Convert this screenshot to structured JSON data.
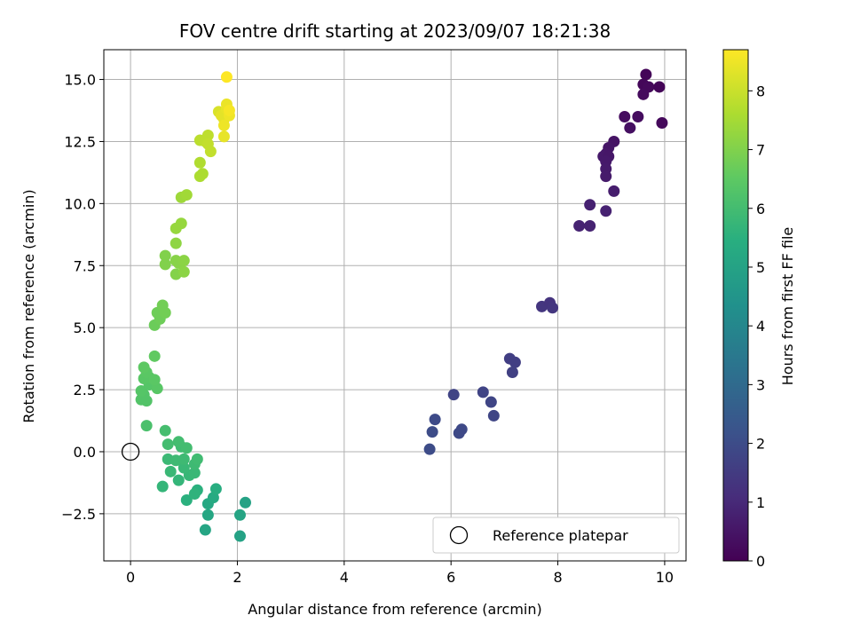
{
  "chart_data": {
    "type": "scatter",
    "title": "FOV centre drift starting at 2023/09/07 18:21:38",
    "xlabel": "Angular distance from reference (arcmin)",
    "ylabel": "Rotation from reference (arcmin)",
    "xlim": [
      -0.5,
      10.4
    ],
    "ylim": [
      -4.4,
      16.2
    ],
    "xticks": [
      0,
      2,
      4,
      6,
      8,
      10
    ],
    "xtick_labels": [
      "0",
      "2",
      "4",
      "6",
      "8",
      "10"
    ],
    "yticks": [
      -2.5,
      0.0,
      2.5,
      5.0,
      7.5,
      10.0,
      12.5,
      15.0
    ],
    "ytick_labels": [
      "−2.5",
      "0.0",
      "2.5",
      "5.0",
      "7.5",
      "10.0",
      "12.5",
      "15.0"
    ],
    "grid": true,
    "colormap": "viridis",
    "colorbar": {
      "label": "Hours from first FF file",
      "range": [
        0,
        8.7
      ],
      "ticks": [
        0,
        1,
        2,
        3,
        4,
        5,
        6,
        7,
        8
      ],
      "tick_labels": [
        "0",
        "1",
        "2",
        "3",
        "4",
        "5",
        "6",
        "7",
        "8"
      ]
    },
    "legend": {
      "entries": [
        "Reference platepar"
      ],
      "placement": "lower-right"
    },
    "reference_point": {
      "x": 0,
      "y": 0
    },
    "series": [
      {
        "points": [
          {
            "x": 9.65,
            "y": 15.2,
            "c": 0.1
          },
          {
            "x": 9.6,
            "y": 14.8,
            "c": 0.15
          },
          {
            "x": 9.7,
            "y": 14.7,
            "c": 0.2
          },
          {
            "x": 9.9,
            "y": 14.7,
            "c": 0.1
          },
          {
            "x": 9.6,
            "y": 14.4,
            "c": 0.25
          },
          {
            "x": 9.25,
            "y": 13.5,
            "c": 0.3
          },
          {
            "x": 9.5,
            "y": 13.5,
            "c": 0.3
          },
          {
            "x": 9.35,
            "y": 13.05,
            "c": 0.35
          },
          {
            "x": 9.95,
            "y": 13.25,
            "c": 0.2
          },
          {
            "x": 9.05,
            "y": 12.5,
            "c": 0.45
          },
          {
            "x": 8.95,
            "y": 12.25,
            "c": 0.5
          },
          {
            "x": 8.9,
            "y": 12.0,
            "c": 0.55
          },
          {
            "x": 8.85,
            "y": 11.9,
            "c": 0.6
          },
          {
            "x": 8.95,
            "y": 11.9,
            "c": 0.55
          },
          {
            "x": 8.9,
            "y": 11.7,
            "c": 0.6
          },
          {
            "x": 8.9,
            "y": 11.4,
            "c": 0.65
          },
          {
            "x": 8.9,
            "y": 11.1,
            "c": 0.65
          },
          {
            "x": 9.05,
            "y": 10.5,
            "c": 0.7
          },
          {
            "x": 8.6,
            "y": 9.95,
            "c": 0.8
          },
          {
            "x": 8.9,
            "y": 9.7,
            "c": 0.8
          },
          {
            "x": 8.4,
            "y": 9.1,
            "c": 0.85
          },
          {
            "x": 8.6,
            "y": 9.1,
            "c": 0.85
          },
          {
            "x": 7.7,
            "y": 5.85,
            "c": 1.35
          },
          {
            "x": 7.85,
            "y": 6.0,
            "c": 1.3
          },
          {
            "x": 7.9,
            "y": 5.8,
            "c": 1.35
          },
          {
            "x": 7.1,
            "y": 3.75,
            "c": 1.6
          },
          {
            "x": 7.2,
            "y": 3.6,
            "c": 1.6
          },
          {
            "x": 7.15,
            "y": 3.2,
            "c": 1.65
          },
          {
            "x": 6.6,
            "y": 2.4,
            "c": 1.75
          },
          {
            "x": 6.75,
            "y": 2.0,
            "c": 1.8
          },
          {
            "x": 6.8,
            "y": 1.45,
            "c": 1.8
          },
          {
            "x": 6.05,
            "y": 2.3,
            "c": 1.75
          },
          {
            "x": 6.2,
            "y": 0.9,
            "c": 1.9
          },
          {
            "x": 6.15,
            "y": 0.75,
            "c": 1.9
          },
          {
            "x": 5.7,
            "y": 1.3,
            "c": 1.95
          },
          {
            "x": 5.65,
            "y": 0.8,
            "c": 2.0
          },
          {
            "x": 5.6,
            "y": 0.1,
            "c": 2.0
          },
          {
            "x": 2.15,
            "y": -2.05,
            "c": 5.0
          },
          {
            "x": 2.05,
            "y": -2.55,
            "c": 5.05
          },
          {
            "x": 2.05,
            "y": -3.4,
            "c": 5.0
          },
          {
            "x": 1.4,
            "y": -3.15,
            "c": 5.1
          },
          {
            "x": 1.45,
            "y": -2.55,
            "c": 5.15
          },
          {
            "x": 1.45,
            "y": -2.1,
            "c": 5.2
          },
          {
            "x": 1.55,
            "y": -1.85,
            "c": 5.3
          },
          {
            "x": 1.6,
            "y": -1.5,
            "c": 5.4
          },
          {
            "x": 1.25,
            "y": -1.55,
            "c": 5.5
          },
          {
            "x": 1.05,
            "y": -1.95,
            "c": 5.5
          },
          {
            "x": 1.2,
            "y": -1.7,
            "c": 5.6
          },
          {
            "x": 0.9,
            "y": -1.15,
            "c": 5.7
          },
          {
            "x": 1.1,
            "y": -0.95,
            "c": 5.75
          },
          {
            "x": 1.2,
            "y": -0.85,
            "c": 5.8
          },
          {
            "x": 1.0,
            "y": -0.65,
            "c": 5.8
          },
          {
            "x": 0.75,
            "y": -0.8,
            "c": 5.8
          },
          {
            "x": 0.6,
            "y": -1.4,
            "c": 5.7
          },
          {
            "x": 0.7,
            "y": -0.3,
            "c": 5.85
          },
          {
            "x": 0.85,
            "y": -0.35,
            "c": 5.9
          },
          {
            "x": 1.0,
            "y": -0.3,
            "c": 5.9
          },
          {
            "x": 1.2,
            "y": -0.5,
            "c": 5.9
          },
          {
            "x": 1.25,
            "y": -0.3,
            "c": 5.95
          },
          {
            "x": 0.95,
            "y": 0.2,
            "c": 5.95
          },
          {
            "x": 1.05,
            "y": 0.15,
            "c": 6.0
          },
          {
            "x": 0.9,
            "y": 0.4,
            "c": 6.0
          },
          {
            "x": 0.7,
            "y": 0.3,
            "c": 6.0
          },
          {
            "x": 0.65,
            "y": 0.85,
            "c": 6.05
          },
          {
            "x": 0.3,
            "y": 1.05,
            "c": 6.15
          },
          {
            "x": 0.2,
            "y": 2.1,
            "c": 6.3
          },
          {
            "x": 0.3,
            "y": 2.05,
            "c": 6.3
          },
          {
            "x": 0.25,
            "y": 2.3,
            "c": 6.3
          },
          {
            "x": 0.2,
            "y": 2.45,
            "c": 6.35
          },
          {
            "x": 0.35,
            "y": 2.7,
            "c": 6.35
          },
          {
            "x": 0.25,
            "y": 2.95,
            "c": 6.4
          },
          {
            "x": 0.35,
            "y": 3.0,
            "c": 6.4
          },
          {
            "x": 0.5,
            "y": 2.55,
            "c": 6.4
          },
          {
            "x": 0.45,
            "y": 2.9,
            "c": 6.45
          },
          {
            "x": 0.3,
            "y": 3.2,
            "c": 6.45
          },
          {
            "x": 0.25,
            "y": 3.4,
            "c": 6.5
          },
          {
            "x": 0.45,
            "y": 3.85,
            "c": 6.55
          },
          {
            "x": 0.45,
            "y": 5.1,
            "c": 6.7
          },
          {
            "x": 0.55,
            "y": 5.35,
            "c": 6.75
          },
          {
            "x": 0.5,
            "y": 5.6,
            "c": 6.75
          },
          {
            "x": 0.65,
            "y": 5.6,
            "c": 6.8
          },
          {
            "x": 0.6,
            "y": 5.9,
            "c": 6.8
          },
          {
            "x": 0.65,
            "y": 7.55,
            "c": 7.0
          },
          {
            "x": 0.65,
            "y": 7.9,
            "c": 7.0
          },
          {
            "x": 0.85,
            "y": 7.15,
            "c": 7.05
          },
          {
            "x": 0.9,
            "y": 7.6,
            "c": 7.1
          },
          {
            "x": 0.85,
            "y": 7.7,
            "c": 7.1
          },
          {
            "x": 1.0,
            "y": 7.7,
            "c": 7.15
          },
          {
            "x": 1.0,
            "y": 7.25,
            "c": 7.15
          },
          {
            "x": 0.85,
            "y": 8.4,
            "c": 7.2
          },
          {
            "x": 0.85,
            "y": 9.0,
            "c": 7.3
          },
          {
            "x": 0.95,
            "y": 9.2,
            "c": 7.3
          },
          {
            "x": 0.95,
            "y": 10.25,
            "c": 7.4
          },
          {
            "x": 1.05,
            "y": 10.35,
            "c": 7.45
          },
          {
            "x": 1.3,
            "y": 11.1,
            "c": 7.6
          },
          {
            "x": 1.35,
            "y": 11.2,
            "c": 7.6
          },
          {
            "x": 1.3,
            "y": 11.65,
            "c": 7.65
          },
          {
            "x": 1.3,
            "y": 12.55,
            "c": 7.8
          },
          {
            "x": 1.4,
            "y": 12.5,
            "c": 7.85
          },
          {
            "x": 1.45,
            "y": 12.75,
            "c": 7.85
          },
          {
            "x": 1.45,
            "y": 12.4,
            "c": 7.9
          },
          {
            "x": 1.5,
            "y": 12.1,
            "c": 7.9
          },
          {
            "x": 1.65,
            "y": 13.7,
            "c": 8.2
          },
          {
            "x": 1.75,
            "y": 13.4,
            "c": 8.3
          },
          {
            "x": 1.7,
            "y": 13.55,
            "c": 8.35
          },
          {
            "x": 1.8,
            "y": 13.8,
            "c": 8.4
          },
          {
            "x": 1.8,
            "y": 14.0,
            "c": 8.45
          },
          {
            "x": 1.85,
            "y": 13.55,
            "c": 8.5
          },
          {
            "x": 1.75,
            "y": 13.15,
            "c": 8.5
          },
          {
            "x": 1.75,
            "y": 12.7,
            "c": 8.4
          },
          {
            "x": 1.8,
            "y": 15.1,
            "c": 8.7
          },
          {
            "x": 1.85,
            "y": 13.75,
            "c": 8.6
          }
        ]
      }
    ]
  }
}
